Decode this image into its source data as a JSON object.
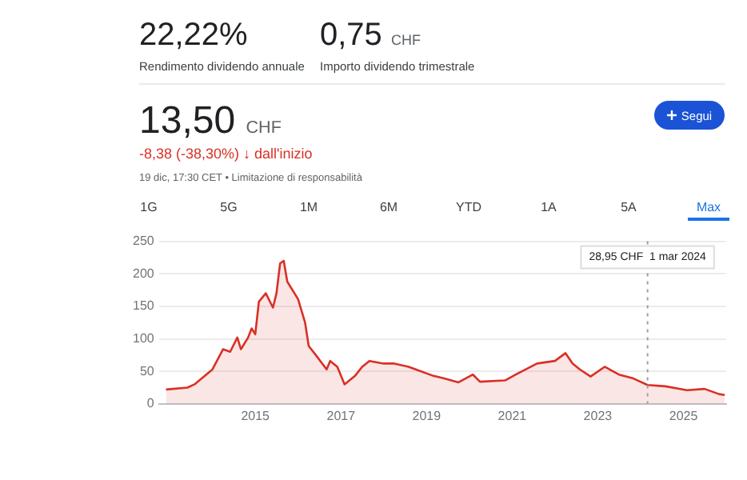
{
  "chart_data": {
    "type": "area",
    "title": "13,50 CHF",
    "subtitle": "-8,38 (-38,30%) ↓ dall'inizio",
    "annotations": [
      "22,22%",
      "Rendimento dividendo annuale",
      "0,75 CHF",
      "Importo dividendo trimestrale",
      "19 dic, 17:30 CET • Limitazione di responsabilità",
      "Segui",
      "1G",
      "5G",
      "1M",
      "6M",
      "YTD",
      "1A",
      "5A",
      "Max"
    ],
    "ref_lines": [
      {
        "axis": "x",
        "value": "2024-03-01",
        "label": "28,95 CHF  1 mar 2024",
        "color": "#9aa0a6",
        "line_style": "dotted"
      }
    ],
    "series": [
      {
        "color": "#d93025",
        "x": [
          "2012-12",
          "2013-06",
          "2013-08",
          "2013-10",
          "2014-01",
          "2014-04",
          "2014-06",
          "2014-08",
          "2014-09",
          "2014-11",
          "2014-12",
          "2015-01",
          "2015-02",
          "2015-04",
          "2015-06",
          "2015-07",
          "2015-08",
          "2015-09",
          "2015-10",
          "2016-01",
          "2016-03",
          "2016-04",
          "2016-06",
          "2016-09",
          "2016-10",
          "2016-12",
          "2017-02",
          "2017-05",
          "2017-07",
          "2017-09",
          "2018-01",
          "2018-04",
          "2018-08",
          "2018-10",
          "2019-03",
          "2019-06",
          "2019-10",
          "2020-02",
          "2020-04",
          "2020-11",
          "2021-02",
          "2021-08",
          "2022-01",
          "2022-04",
          "2022-06",
          "2022-08",
          "2022-11",
          "2023-03",
          "2023-07",
          "2023-11",
          "2024-03-01",
          "2024-08",
          "2025-02",
          "2025-07",
          "2025-11",
          "2025-12-19"
        ],
        "values": [
          22,
          25,
          30,
          39,
          53,
          84,
          80,
          102,
          84,
          102,
          116,
          107,
          157,
          170,
          148,
          170,
          216,
          220,
          188,
          161,
          125,
          89,
          75,
          53,
          66,
          57,
          30,
          43,
          57,
          66,
          62,
          62,
          57,
          53,
          43,
          39,
          33,
          45,
          34,
          36,
          45,
          62,
          66,
          78,
          62,
          53,
          42,
          57,
          45,
          39,
          29,
          27,
          21,
          23,
          15,
          13.5
        ]
      }
    ],
    "xlim": [
      "2012-10",
      "2026-01"
    ],
    "xticks": [
      "2015",
      "2017",
      "2019",
      "2021",
      "2023",
      "2025"
    ],
    "ylim": [
      0,
      250
    ],
    "yticks": [
      0,
      50,
      100,
      150,
      200,
      250
    ],
    "grid": "y",
    "legend": false,
    "marker": "none",
    "line_style": "solid"
  }
}
